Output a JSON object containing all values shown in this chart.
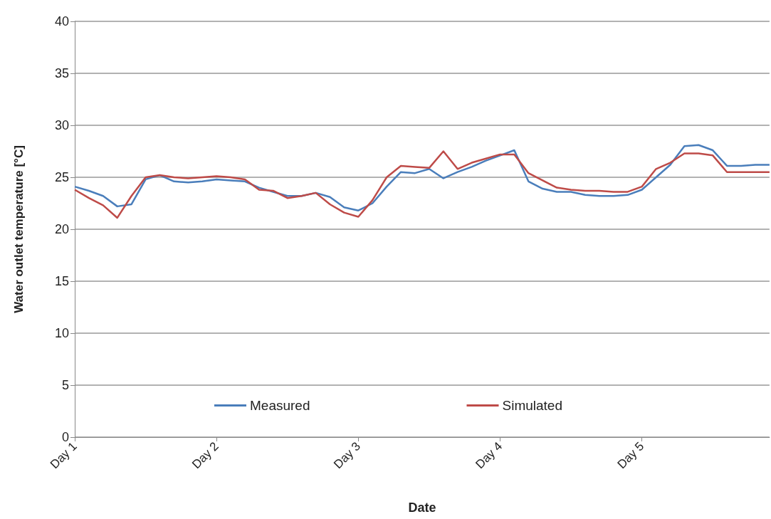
{
  "chart_data": {
    "type": "line",
    "xlabel": "Date",
    "ylabel": "Water outlet temperature [°C]",
    "categories": [
      "Day 1",
      null,
      null,
      null,
      null,
      null,
      null,
      null,
      null,
      null,
      "Day 2",
      null,
      null,
      null,
      null,
      null,
      null,
      null,
      null,
      null,
      "Day 3",
      null,
      null,
      null,
      null,
      null,
      null,
      null,
      null,
      null,
      "Day 4",
      null,
      null,
      null,
      null,
      null,
      null,
      null,
      null,
      null,
      "Day 5",
      null,
      null,
      null,
      null,
      null,
      null,
      null,
      null,
      null
    ],
    "ylim": [
      0,
      40
    ],
    "yticks": [
      0,
      5,
      10,
      15,
      20,
      25,
      30,
      35,
      40
    ],
    "grid": "y",
    "legend": "bottom",
    "marker": "none",
    "line_style": "solid",
    "series": [
      {
        "name": "Measured",
        "color": "#4a7ebb",
        "values": [
          24.1,
          23.7,
          23.2,
          22.2,
          22.4,
          24.8,
          25.2,
          24.6,
          24.5,
          24.6,
          24.8,
          24.7,
          24.6,
          24.0,
          23.6,
          23.2,
          23.2,
          23.5,
          23.1,
          22.1,
          21.8,
          22.5,
          24.1,
          25.5,
          25.4,
          25.8,
          24.9,
          25.5,
          26.0,
          26.6,
          27.1,
          27.6,
          24.6,
          23.9,
          23.6,
          23.6,
          23.3,
          23.2,
          23.2,
          23.3,
          23.8,
          25.0,
          26.2,
          28.0,
          28.1,
          27.6,
          26.1,
          26.1,
          26.2,
          26.2
        ]
      },
      {
        "name": "Simulated",
        "color": "#be4b48",
        "values": [
          23.8,
          23.0,
          22.3,
          21.1,
          23.2,
          25.0,
          25.2,
          25.0,
          24.9,
          25.0,
          25.1,
          25.0,
          24.8,
          23.8,
          23.7,
          23.0,
          23.2,
          23.5,
          22.4,
          21.6,
          21.2,
          22.8,
          25.0,
          26.1,
          26.0,
          25.9,
          27.5,
          25.8,
          26.4,
          26.8,
          27.2,
          27.2,
          25.4,
          24.7,
          24.0,
          23.8,
          23.7,
          23.7,
          23.6,
          23.6,
          24.1,
          25.8,
          26.4,
          27.3,
          27.3,
          27.1,
          25.5,
          25.5,
          25.5,
          25.5
        ]
      }
    ]
  }
}
